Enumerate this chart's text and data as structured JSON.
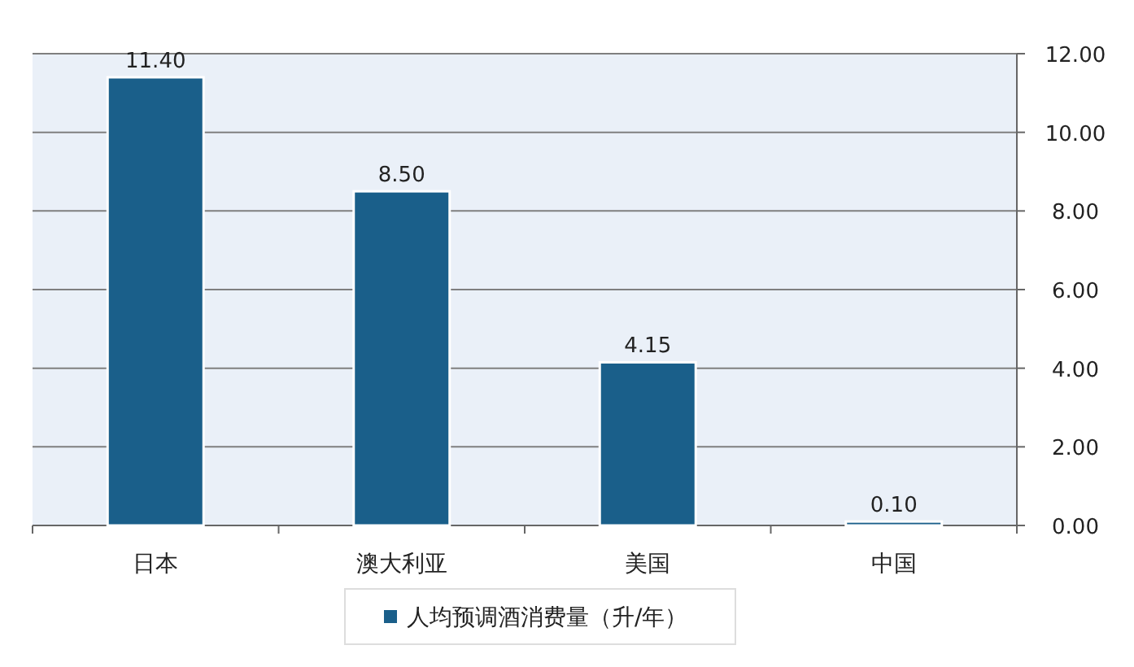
{
  "chart_data": {
    "type": "bar",
    "categories": [
      "日本",
      "澳大利亚",
      "美国",
      "中国"
    ],
    "series": [
      {
        "name": "人均预调酒消费量（升/年）",
        "color": "#1a5f8a",
        "values": [
          11.4,
          8.5,
          4.15,
          0.1
        ]
      }
    ],
    "ylim": [
      0,
      12
    ],
    "yticks": [
      {
        "value": 0,
        "label": "0.00"
      },
      {
        "value": 2,
        "label": "2.00"
      },
      {
        "value": 4,
        "label": "4.00"
      },
      {
        "value": 6,
        "label": "6.00"
      },
      {
        "value": 8,
        "label": "8.00"
      },
      {
        "value": 10,
        "label": "10.00"
      },
      {
        "value": 12,
        "label": "12.00"
      }
    ],
    "value_labels": [
      "11.40",
      "8.50",
      "4.15",
      "0.10"
    ],
    "grid": "y",
    "legend": "bottom"
  }
}
